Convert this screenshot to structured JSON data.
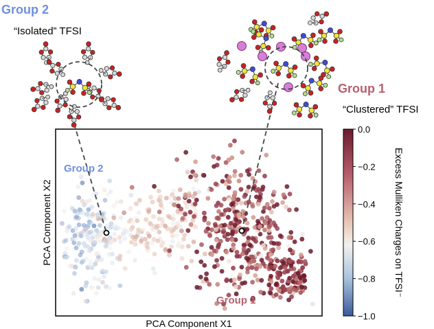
{
  "annotations": {
    "group2_title": "Group 2",
    "group2_subtitle": "“Isolated” TFSI",
    "group1_title": "Group 1",
    "group1_subtitle": "“Clustered” TFSI",
    "group2_in_plot": "Group 2",
    "group1_in_plot": "Group 1"
  },
  "colors": {
    "group2": "#6f8fde",
    "group1": "#b8606e",
    "cmap_low": "#3b5a9a",
    "cmap_mid": "#f4f1ee",
    "cmap_high": "#6b1a2e"
  },
  "colorbar": {
    "label": "Excess Mulliken Charges on TFSI⁻",
    "ticks": [
      0.0,
      -0.2,
      -0.4,
      -0.6,
      -0.8,
      -1.0
    ],
    "tick_labels": [
      "0.0",
      "−0.2",
      "−0.4",
      "−0.6",
      "−0.8",
      "−1.0"
    ],
    "range": [
      -1.0,
      0.0
    ]
  },
  "chart_data": {
    "type": "scatter",
    "title": "",
    "xlabel": "PCA Component X1",
    "ylabel": "PCA Component X2",
    "xticks": "none",
    "yticks": "none",
    "grid": false,
    "color_encoding": "excess Mulliken charge (colorbar, -1.0 to 0.0)",
    "clusters": [
      {
        "name": "Group 2",
        "center": [
          0.19,
          0.4
        ],
        "charge_range": [
          -0.75,
          -0.4
        ]
      },
      {
        "name": "Group 1",
        "center": [
          0.73,
          0.4
        ],
        "charge_range": [
          -0.5,
          0.0
        ]
      }
    ],
    "highlighted_points": [
      {
        "group": "Group 2",
        "x": 0.22,
        "y": 0.42
      },
      {
        "group": "Group 1",
        "x": 0.74,
        "y": 0.42
      }
    ]
  }
}
